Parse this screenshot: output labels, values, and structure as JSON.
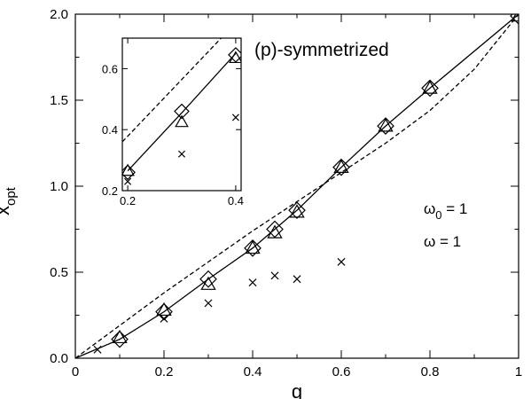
{
  "chart_data": [
    {
      "type": "line",
      "xlabel": "g",
      "ylabel": "x",
      "ylabel_sub": "opt",
      "xlim": [
        0,
        1
      ],
      "ylim": [
        0,
        2
      ],
      "xticks": [
        "0",
        "0.2",
        "0.4",
        "0.6",
        "0.8",
        "1"
      ],
      "yticks": [
        "0.0",
        "0.5",
        "1.0",
        "1.5",
        "2.0"
      ],
      "annotations": {
        "omega0_symbol": "ω",
        "omega0_sub": "0",
        "omega0_value": " = 1",
        "omega_symbol": "ω",
        "omega_value": "  = 1"
      },
      "series": [
        {
          "style": "solid-line",
          "x": [
            0,
            0.1,
            0.2,
            0.3,
            0.4,
            0.45,
            0.5,
            0.6,
            0.7,
            0.8,
            1.0
          ],
          "y": [
            0,
            0.11,
            0.27,
            0.46,
            0.64,
            0.75,
            0.86,
            1.11,
            1.35,
            1.57,
            2.0
          ]
        },
        {
          "style": "dashed-line",
          "x": [
            0,
            0.1,
            0.2,
            0.3,
            0.4,
            0.5,
            0.6,
            0.7,
            0.8,
            0.9,
            1.0
          ],
          "y": [
            0,
            0.19,
            0.38,
            0.56,
            0.74,
            0.91,
            1.08,
            1.25,
            1.44,
            1.68,
            2.0
          ]
        },
        {
          "style": "diamond-marker",
          "x": [
            0.1,
            0.2,
            0.3,
            0.4,
            0.45,
            0.5,
            0.6,
            0.7,
            0.8,
            1.0
          ],
          "y": [
            0.11,
            0.27,
            0.46,
            0.64,
            0.75,
            0.86,
            1.11,
            1.35,
            1.57,
            1.99
          ]
        },
        {
          "style": "triangle-marker",
          "x": [
            0.1,
            0.2,
            0.3,
            0.4,
            0.45,
            0.5,
            0.6,
            0.7,
            0.8,
            1.0
          ],
          "y": [
            0.12,
            0.28,
            0.43,
            0.64,
            0.73,
            0.85,
            1.11,
            1.35,
            1.57,
            1.99
          ]
        },
        {
          "style": "x-marker",
          "x": [
            0.05,
            0.2,
            0.3,
            0.4,
            0.45,
            0.5,
            0.6
          ],
          "y": [
            0.05,
            0.23,
            0.32,
            0.44,
            0.48,
            0.46,
            0.56
          ]
        }
      ]
    },
    {
      "type": "line",
      "title": "(p)-symmetrized",
      "xlim": [
        0.19,
        0.41
      ],
      "ylim": [
        0.2,
        0.7
      ],
      "xticks": [
        "0.2",
        "0.4"
      ],
      "yticks": [
        "0.2",
        "0.4",
        "0.6"
      ],
      "series": [
        {
          "style": "solid-line",
          "x": [
            0.2,
            0.3,
            0.4
          ],
          "y": [
            0.265,
            0.455,
            0.65
          ]
        },
        {
          "style": "dashed-line",
          "x": [
            0.19,
            0.4
          ],
          "y": [
            0.36,
            0.75
          ]
        },
        {
          "style": "diamond-marker",
          "x": [
            0.2,
            0.3,
            0.4
          ],
          "y": [
            0.26,
            0.46,
            0.645
          ]
        },
        {
          "style": "triangle-marker",
          "x": [
            0.2,
            0.3,
            0.4
          ],
          "y": [
            0.265,
            0.425,
            0.635
          ]
        },
        {
          "style": "x-marker",
          "x": [
            0.2,
            0.3,
            0.4
          ],
          "y": [
            0.23,
            0.32,
            0.44
          ]
        }
      ]
    }
  ]
}
